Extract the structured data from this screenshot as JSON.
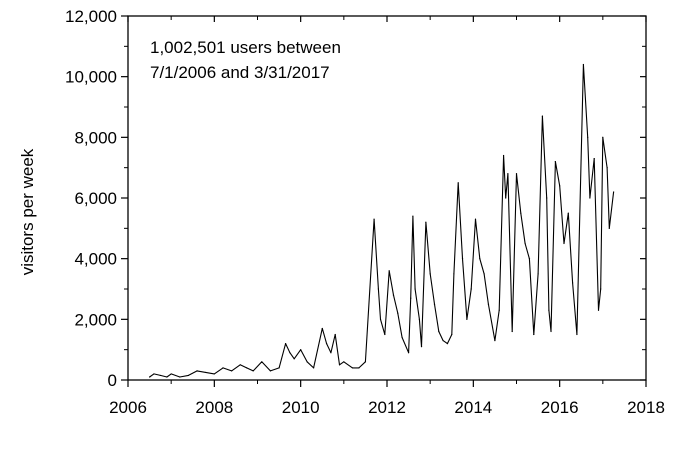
{
  "chart_data": {
    "type": "line",
    "title": "",
    "xlabel": "",
    "ylabel": "visitors per week",
    "xlim": [
      2006,
      2018
    ],
    "ylim": [
      0,
      12000
    ],
    "x_ticks": [
      2006,
      2008,
      2010,
      2012,
      2014,
      2016,
      2018
    ],
    "x_tick_labels": [
      "2006",
      "2008",
      "2010",
      "2012",
      "2014",
      "2016",
      "2018"
    ],
    "y_ticks": [
      0,
      2000,
      4000,
      6000,
      8000,
      10000,
      12000
    ],
    "y_tick_labels": [
      "0",
      "2,000",
      "4,000",
      "6,000",
      "8,000",
      "10,000",
      "12,000"
    ],
    "grid": false,
    "annotation": [
      "1,002,501 users between",
      "7/1/2006 and 3/31/2017"
    ],
    "series": [
      {
        "color": "#000000",
        "x": [
          2006.5,
          2006.6,
          2006.75,
          2006.9,
          2007.0,
          2007.2,
          2007.4,
          2007.6,
          2007.8,
          2008.0,
          2008.2,
          2008.4,
          2008.6,
          2008.75,
          2008.9,
          2009.1,
          2009.3,
          2009.5,
          2009.65,
          2009.75,
          2009.85,
          2010.0,
          2010.15,
          2010.3,
          2010.5,
          2010.6,
          2010.7,
          2010.8,
          2010.9,
          2011.0,
          2011.2,
          2011.35,
          2011.5,
          2011.7,
          2011.8,
          2011.85,
          2011.95,
          2012.05,
          2012.15,
          2012.25,
          2012.35,
          2012.5,
          2012.55,
          2012.6,
          2012.65,
          2012.75,
          2012.8,
          2012.9,
          2013.0,
          2013.1,
          2013.2,
          2013.3,
          2013.4,
          2013.5,
          2013.55,
          2013.65,
          2013.75,
          2013.85,
          2013.95,
          2014.05,
          2014.15,
          2014.25,
          2014.35,
          2014.5,
          2014.6,
          2014.7,
          2014.75,
          2014.8,
          2014.9,
          2015.0,
          2015.1,
          2015.2,
          2015.3,
          2015.4,
          2015.5,
          2015.6,
          2015.7,
          2015.75,
          2015.8,
          2015.9,
          2016.0,
          2016.1,
          2016.2,
          2016.3,
          2016.4,
          2016.55,
          2016.65,
          2016.7,
          2016.8,
          2016.9,
          2016.95,
          2017.0,
          2017.1,
          2017.15,
          2017.25
        ],
        "values": [
          100,
          200,
          150,
          100,
          200,
          100,
          150,
          300,
          250,
          200,
          400,
          300,
          500,
          400,
          300,
          600,
          300,
          400,
          1200,
          900,
          700,
          1000,
          600,
          400,
          1700,
          1200,
          900,
          1500,
          500,
          600,
          400,
          400,
          600,
          5300,
          3000,
          2000,
          1500,
          3600,
          2800,
          2200,
          1400,
          900,
          2700,
          5400,
          3000,
          2000,
          1100,
          5200,
          3500,
          2500,
          1600,
          1300,
          1200,
          1500,
          3500,
          6500,
          4000,
          2000,
          3000,
          5300,
          4000,
          3500,
          2500,
          1300,
          2300,
          7400,
          6000,
          6800,
          1600,
          6800,
          5500,
          4500,
          4000,
          1500,
          3500,
          8700,
          6000,
          2300,
          1600,
          7200,
          6400,
          4500,
          5500,
          3200,
          1500,
          10400,
          8000,
          6000,
          7300,
          2300,
          3000,
          8000,
          7000,
          5000,
          6200
        ]
      }
    ]
  }
}
